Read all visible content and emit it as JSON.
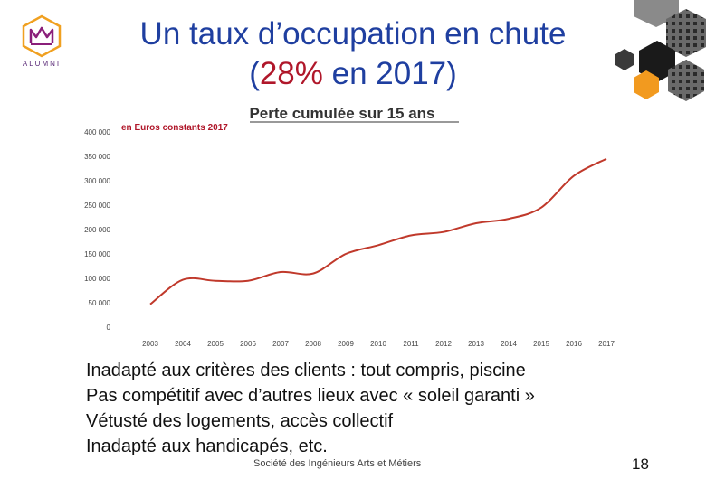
{
  "slide": {
    "title_line1": "Un taux d’occupation en chute",
    "title_line2_open": "(",
    "title_line2_accent": "28%",
    "title_line2_rest": " en 2017)",
    "logo_text": "ALUMNI",
    "logo_icon": "alumni-crown-logo",
    "bullets": [
      "Inadapté aux critères des clients : tout compris, piscine",
      "Pas compétitif avec d’autres lieux avec « soleil garanti »",
      "Vétusté des logements, accès collectif",
      "Inadapté aux handicapés, etc."
    ],
    "footer": "Société des Ingénieurs Arts et Métiers",
    "page_number": "18",
    "colors": {
      "title": "#1f3fa0",
      "accent": "#b0172a",
      "line": "#c0392b",
      "hex_orange": "#f29a1f"
    }
  },
  "chart_data": {
    "type": "line",
    "title": "Perte cumulée sur 15 ans",
    "subtitle": "en Euros constants 2017",
    "xlabel": "",
    "ylabel": "",
    "categories": [
      "2003",
      "2004",
      "2005",
      "2006",
      "2007",
      "2008",
      "2009",
      "2010",
      "2011",
      "2012",
      "2013",
      "2014",
      "2015",
      "2016",
      "2017"
    ],
    "series": [
      {
        "values": [
          47000,
          97000,
          95000,
          95000,
          113000,
          110000,
          150000,
          168000,
          188000,
          195000,
          213000,
          222000,
          245000,
          310000,
          345000
        ]
      }
    ],
    "y_ticks": [
      "0",
      "50 000",
      "100 000",
      "150 000",
      "200 000",
      "250 000",
      "300 000",
      "350 000",
      "400 000"
    ],
    "ylim": [
      0,
      400000
    ],
    "grid": false,
    "legend": "none"
  }
}
